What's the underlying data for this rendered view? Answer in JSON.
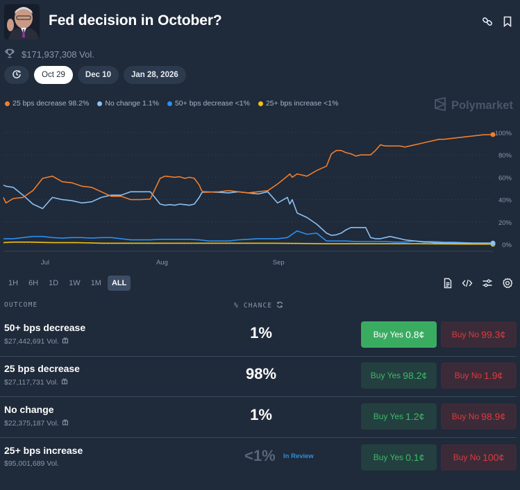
{
  "header": {
    "title": "Fed decision in October?",
    "total_volume": "$171,937,308 Vol."
  },
  "date_pills": [
    {
      "label": "Oct 29",
      "active": true
    },
    {
      "label": "Dec 10",
      "active": false
    },
    {
      "label": "Jan 28, 2026",
      "active": false
    }
  ],
  "legend": [
    {
      "label": "25 bps decrease 98.2%",
      "color": "#f07f2e"
    },
    {
      "label": "No change 1.1%",
      "color": "#8cc1f2"
    },
    {
      "label": "50+ bps decrease <1%",
      "color": "#2d8ff0"
    },
    {
      "label": "25+ bps increase <1%",
      "color": "#f2c311"
    }
  ],
  "brand": "Polymarket",
  "time_ranges": [
    {
      "label": "1H",
      "active": false
    },
    {
      "label": "6H",
      "active": false
    },
    {
      "label": "1D",
      "active": false
    },
    {
      "label": "1W",
      "active": false
    },
    {
      "label": "1M",
      "active": false
    },
    {
      "label": "ALL",
      "active": true
    }
  ],
  "table": {
    "col_outcome": "OUTCOME",
    "col_chance": "% CHANCE",
    "rows": [
      {
        "name": "50+ bps decrease",
        "volume": "$27,442,691 Vol.",
        "chance": "1%",
        "yes_label": "Buy Yes",
        "yes_price": "0.8¢",
        "no_label": "Buy No",
        "no_price": "99.3¢"
      },
      {
        "name": "25 bps decrease",
        "volume": "$27,117,731 Vol.",
        "chance": "98%",
        "yes_label": "Buy Yes",
        "yes_price": "98.2¢",
        "no_label": "Buy No",
        "no_price": "1.9¢"
      },
      {
        "name": "No change",
        "volume": "$22,375,187 Vol.",
        "chance": "1%",
        "yes_label": "Buy Yes",
        "yes_price": "1.2¢",
        "no_label": "Buy No",
        "no_price": "98.9¢"
      },
      {
        "name": "25+ bps increase",
        "volume": "$95,001,689 Vol.",
        "chance": "<1%",
        "status": "In Review",
        "yes_label": "Buy Yes",
        "yes_price": "0.1¢",
        "no_label": "Buy No",
        "no_price": "100¢"
      }
    ]
  },
  "chart_data": {
    "type": "line",
    "title": "",
    "xlabel": "",
    "ylabel": "",
    "x_ticks": [
      "Jul",
      "Aug",
      "Sep"
    ],
    "y_ticks": [
      "0%",
      "20%",
      "40%",
      "60%",
      "80%",
      "100%"
    ],
    "ylim": [
      0,
      100
    ],
    "x_range": [
      0,
      100
    ],
    "grid": true,
    "legend_position": "top-left",
    "series": [
      {
        "name": "25 bps decrease",
        "color": "#f07f2e",
        "x": [
          0,
          0.5,
          2,
          4,
          6,
          8,
          10,
          12,
          14,
          16,
          18,
          20,
          22,
          24,
          26,
          28,
          30,
          32,
          33,
          34,
          35,
          36,
          37,
          38,
          39,
          40,
          40.5,
          41,
          44,
          46,
          48,
          50,
          52,
          54,
          56,
          58,
          58.5,
          59,
          60,
          62,
          64,
          66,
          67,
          68,
          69,
          70,
          71,
          72,
          73,
          74,
          75,
          76,
          77,
          78,
          79,
          80,
          81,
          82,
          83,
          84,
          85,
          86,
          87,
          88,
          89,
          90,
          92,
          94,
          96,
          98,
          100
        ],
        "y": [
          42,
          37,
          41,
          42,
          48,
          59,
          61,
          56,
          55,
          52,
          51,
          47,
          43,
          43,
          40,
          40,
          40.5,
          59,
          61,
          60.5,
          60,
          60.5,
          59,
          60,
          59,
          53,
          48,
          46.5,
          47,
          48,
          47,
          46,
          47,
          48,
          54,
          61,
          63,
          60,
          63,
          61,
          66,
          70,
          81,
          84,
          84,
          82,
          81,
          79,
          80,
          80,
          80,
          84,
          89,
          88,
          88,
          88,
          88,
          87,
          88,
          89,
          90,
          91,
          92,
          93,
          94,
          94,
          95,
          96,
          97,
          98,
          98.2
        ]
      },
      {
        "name": "No change",
        "color": "#8cc1f2",
        "x": [
          0,
          0.5,
          2,
          4,
          6,
          8,
          10,
          12,
          14,
          16,
          18,
          20,
          22,
          24,
          26,
          28,
          30,
          32,
          33,
          34,
          35,
          36,
          37,
          38,
          39,
          40,
          40.5,
          41,
          44,
          46,
          48,
          50,
          52,
          54,
          56,
          58,
          58.5,
          59,
          60,
          62,
          64,
          66,
          67,
          68,
          69,
          70,
          71,
          72,
          73,
          74,
          75,
          76,
          77,
          78,
          79,
          80,
          81,
          82,
          83,
          84,
          85,
          86,
          87,
          88,
          89,
          90,
          92,
          94,
          96,
          98,
          100
        ],
        "y": [
          53,
          52,
          51,
          44,
          36,
          32,
          42,
          40,
          39,
          37,
          38,
          42,
          44,
          44,
          47,
          47,
          47,
          36,
          35,
          35.5,
          35,
          36,
          35.5,
          35,
          36,
          42,
          46,
          47,
          46.5,
          46,
          47,
          46,
          45,
          47,
          37,
          42,
          36,
          40,
          28,
          24,
          18,
          10,
          8,
          8.5,
          10,
          13,
          15,
          15,
          15,
          15,
          6,
          5,
          5,
          6,
          7,
          6,
          5,
          4,
          3.5,
          3,
          2.5,
          2,
          2,
          1.5,
          1.5,
          1.2,
          1.2,
          1.2,
          1.1,
          1.1,
          1.1
        ]
      },
      {
        "name": "50+ bps decrease",
        "color": "#2d8ff0",
        "x": [
          0,
          2,
          4,
          6,
          8,
          10,
          12,
          14,
          16,
          18,
          20,
          22,
          24,
          26,
          28,
          30,
          32,
          34,
          36,
          38,
          40,
          42,
          44,
          46,
          48,
          50,
          52,
          54,
          56,
          58,
          60,
          62,
          64,
          66,
          68,
          70,
          72,
          74,
          76,
          78,
          80,
          82,
          84,
          86,
          88,
          90,
          92,
          94,
          96,
          98,
          100
        ],
        "y": [
          5,
          5,
          6,
          7,
          7,
          6,
          5.5,
          6,
          6,
          5.5,
          6,
          6,
          5,
          4,
          4,
          4,
          4.5,
          4.5,
          4.5,
          4.5,
          4,
          3,
          3,
          3,
          4,
          4.5,
          5,
          5,
          5,
          6,
          12,
          9,
          10,
          3,
          3,
          3,
          2.5,
          2.5,
          2.5,
          2.5,
          2,
          2,
          3,
          2.5,
          2.5,
          2,
          2,
          1.5,
          1,
          1,
          0.8
        ]
      },
      {
        "name": "25+ bps increase",
        "color": "#f2c311",
        "x": [
          0,
          2,
          5,
          10,
          15,
          20,
          25,
          30,
          35,
          40,
          45,
          50,
          55,
          60,
          65,
          70,
          75,
          80,
          85,
          90,
          95,
          100
        ],
        "y": [
          1.5,
          2,
          2,
          1.5,
          1.5,
          1,
          1,
          1,
          1,
          1,
          1,
          1,
          1,
          0.8,
          0.5,
          0.5,
          0.5,
          0.5,
          0.5,
          0.3,
          0.2,
          0.1
        ]
      }
    ]
  }
}
